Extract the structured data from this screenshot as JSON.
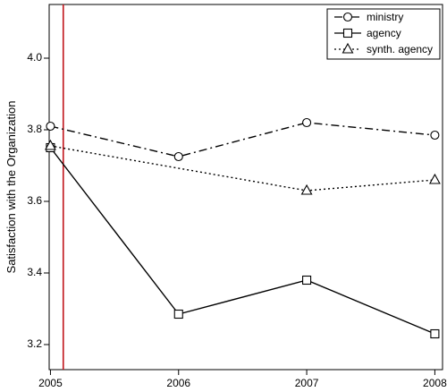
{
  "chart_data": {
    "type": "line",
    "title": "",
    "xlabel": "",
    "ylabel": "Satisfaction with the Organization",
    "x": [
      2005,
      2006,
      2007,
      2008
    ],
    "xlim": [
      2004.99,
      2008.06
    ],
    "ylim": [
      3.13,
      4.15
    ],
    "yticks": [
      3.2,
      3.4,
      3.6,
      3.8,
      4.0
    ],
    "ytick_labels": [
      "3.2",
      "3.4",
      "3.6",
      "3.8",
      "4.0"
    ],
    "xticks": [
      2005,
      2006,
      2007,
      2008
    ],
    "xtick_labels": [
      "2005",
      "2006",
      "2007",
      "2008"
    ],
    "grid": false,
    "legend_position": "top-right",
    "vertical_line": {
      "x": 2005.1,
      "color": "#c0151b"
    },
    "series": [
      {
        "name": "ministry",
        "values": [
          3.81,
          3.725,
          3.82,
          3.785
        ],
        "line_style": "dashdot",
        "marker": "circle"
      },
      {
        "name": "agency",
        "values": [
          3.75,
          3.285,
          3.38,
          3.23
        ],
        "line_style": "solid",
        "marker": "square"
      },
      {
        "name": "synth. agency",
        "values": [
          3.755,
          null,
          3.63,
          3.66
        ],
        "line_style": "dotted",
        "marker": "triangle"
      }
    ]
  }
}
